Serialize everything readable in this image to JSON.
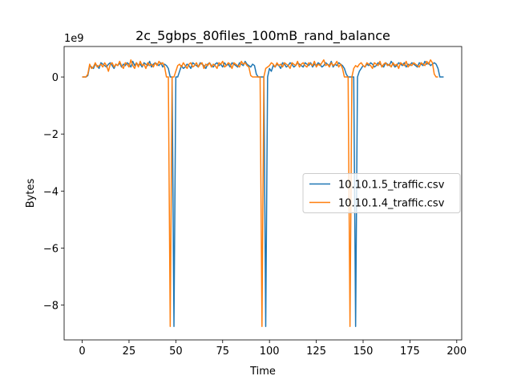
{
  "chart_data": {
    "type": "line",
    "title": "2c_5gbps_80files_100mB_rand_balance",
    "xlabel": "Time",
    "ylabel": "Bytes",
    "y_offset_label": "1e9",
    "x": [
      0,
      1,
      2,
      3,
      4,
      5,
      6,
      7,
      8,
      9,
      10,
      11,
      12,
      13,
      14,
      15,
      16,
      17,
      18,
      19,
      20,
      21,
      22,
      23,
      24,
      25,
      26,
      27,
      28,
      29,
      30,
      31,
      32,
      33,
      34,
      35,
      36,
      37,
      38,
      39,
      40,
      41,
      42,
      43,
      44,
      45,
      46,
      47,
      48,
      49,
      50,
      51,
      52,
      53,
      54,
      55,
      56,
      57,
      58,
      59,
      60,
      61,
      62,
      63,
      64,
      65,
      66,
      67,
      68,
      69,
      70,
      71,
      72,
      73,
      74,
      75,
      76,
      77,
      78,
      79,
      80,
      81,
      82,
      83,
      84,
      85,
      86,
      87,
      88,
      89,
      90,
      91,
      92,
      93,
      94,
      95,
      96,
      97,
      98,
      99,
      100,
      101,
      102,
      103,
      104,
      105,
      106,
      107,
      108,
      109,
      110,
      111,
      112,
      113,
      114,
      115,
      116,
      117,
      118,
      119,
      120,
      121,
      122,
      123,
      124,
      125,
      126,
      127,
      128,
      129,
      130,
      131,
      132,
      133,
      134,
      135,
      136,
      137,
      138,
      139,
      140,
      141,
      142,
      143,
      144,
      145,
      146,
      147,
      148,
      149,
      150,
      151,
      152,
      153,
      154,
      155,
      156,
      157,
      158,
      159,
      160,
      161,
      162,
      163,
      164,
      165,
      166,
      167,
      168,
      169,
      170,
      171,
      172,
      173,
      174,
      175,
      176,
      177,
      178,
      179,
      180,
      181,
      182,
      183,
      184,
      185,
      186,
      187,
      188,
      189,
      190,
      191,
      192,
      193
    ],
    "series": [
      {
        "name": "10.10.1.5_traffic.csv",
        "color": "#1f77b4",
        "values": [
          0,
          0,
          0,
          0.05,
          0.4,
          0.35,
          0.3,
          0.45,
          0.4,
          0.3,
          0.5,
          0.45,
          0.4,
          0.35,
          0.45,
          0.5,
          0.4,
          0.3,
          0.45,
          0.4,
          0.5,
          0.35,
          0.45,
          0.4,
          0.5,
          0.45,
          0.35,
          0.55,
          0.4,
          0.5,
          0.4,
          0.45,
          0.35,
          0.5,
          0.45,
          0.4,
          0.55,
          0.35,
          0.45,
          0.5,
          0.45,
          0.4,
          0.5,
          0.35,
          0.45,
          0.4,
          0.3,
          0,
          0,
          -8.75,
          0,
          0,
          0.2,
          0.4,
          0.3,
          0.35,
          0.45,
          0.4,
          0.3,
          0.5,
          0.45,
          0.4,
          0.35,
          0.5,
          0.45,
          0.4,
          0.3,
          0.45,
          0.5,
          0.4,
          0.35,
          0.45,
          0.5,
          0.4,
          0.45,
          0.35,
          0.5,
          0.4,
          0.45,
          0.35,
          0.5,
          0.45,
          0.4,
          0.35,
          0.5,
          0.45,
          0.4,
          0.55,
          0.45,
          0.4,
          0.35,
          0.45,
          0.4,
          0.1,
          0,
          0,
          0,
          0,
          -8.75,
          0,
          0.3,
          0.2,
          0.4,
          0.35,
          0.45,
          0.4,
          0.3,
          0.5,
          0.45,
          0.35,
          0.4,
          0.5,
          0.45,
          0.35,
          0.4,
          0.5,
          0.45,
          0.4,
          0.35,
          0.5,
          0.45,
          0.4,
          0.5,
          0.35,
          0.45,
          0.4,
          0.5,
          0.45,
          0.35,
          0.4,
          0.5,
          0.45,
          0.4,
          0.55,
          0.35,
          0.45,
          0.4,
          0.5,
          0.45,
          0.4,
          0.3,
          0.1,
          0,
          0,
          0,
          0,
          -8.75,
          0,
          0.2,
          0.3,
          0.4,
          0.35,
          0.45,
          0.4,
          0.5,
          0.45,
          0.35,
          0.4,
          0.5,
          0.45,
          0.4,
          0.35,
          0.5,
          0.45,
          0.4,
          0.55,
          0.45,
          0.35,
          0.4,
          0.5,
          0.45,
          0.4,
          0.5,
          0.35,
          0.45,
          0.4,
          0.5,
          0.45,
          0.4,
          0.35,
          0.5,
          0.45,
          0.4,
          0.55,
          0.45,
          0.5,
          0.4,
          0.45,
          0.5,
          0.45,
          0.3,
          0,
          0,
          0
        ]
      },
      {
        "name": "10.10.1.4_traffic.csv",
        "color": "#ff7f0e",
        "values": [
          0,
          0,
          0,
          0.1,
          0.45,
          0.3,
          0.35,
          0.5,
          0.35,
          0.4,
          0.45,
          0.35,
          0.5,
          0.4,
          0.2,
          0.45,
          0.5,
          0.35,
          0.45,
          0.4,
          0.55,
          0.4,
          0.3,
          0.5,
          0.45,
          0.35,
          0.6,
          0.4,
          0.3,
          0.5,
          0.35,
          0.55,
          0.4,
          0.45,
          0.3,
          0.5,
          0.4,
          0.45,
          0.35,
          0.5,
          0.4,
          0.55,
          0.45,
          0.5,
          0.35,
          0,
          0,
          -8.75,
          0,
          0,
          0.2,
          0.4,
          0.45,
          0.35,
          0.5,
          0.4,
          0.3,
          0.45,
          0.5,
          0.35,
          0.4,
          0.5,
          0.35,
          0.45,
          0.5,
          0.3,
          0.45,
          0.4,
          0.5,
          0.35,
          0.45,
          0.4,
          0.3,
          0.5,
          0.45,
          0.55,
          0.35,
          0.4,
          0.5,
          0.45,
          0.3,
          0.5,
          0.45,
          0.4,
          0.35,
          0.55,
          0.45,
          0.5,
          0.4,
          0.35,
          0.05,
          0,
          0,
          0,
          0,
          0,
          -8.75,
          0,
          0.3,
          0.35,
          0.4,
          0.5,
          0.45,
          0.35,
          0.5,
          0.4,
          0.45,
          0.35,
          0.5,
          0.45,
          0.4,
          0.3,
          0.5,
          0.45,
          0.4,
          0.55,
          0.35,
          0.45,
          0.5,
          0.4,
          0.35,
          0.5,
          0.45,
          0.4,
          0.55,
          0.35,
          0.45,
          0.4,
          0.5,
          0.6,
          0.4,
          0.45,
          0.35,
          0.5,
          0.4,
          0.45,
          0.55,
          0.35,
          0.45,
          0.3,
          0,
          0,
          0,
          -8.75,
          0,
          0.3,
          0.4,
          0.35,
          0.45,
          0.5,
          0.4,
          0.35,
          0.5,
          0.45,
          0.4,
          0.3,
          0.5,
          0.45,
          0.4,
          0.55,
          0.35,
          0.45,
          0.5,
          0.4,
          0.45,
          0.35,
          0.5,
          0.4,
          0.45,
          0.3,
          0.5,
          0.45,
          0.4,
          0.55,
          0.35,
          0.45,
          0.4,
          0.5,
          0.45,
          0.4,
          0.35,
          0.5,
          0.45,
          0.4,
          0.55,
          0.45,
          0.6,
          0.5,
          0.1,
          0,
          0,
          null,
          null,
          null
        ]
      }
    ],
    "xlim": [
      -9.65,
      202.65
    ],
    "xticks": [
      0,
      25,
      50,
      75,
      100,
      125,
      150,
      175,
      200
    ],
    "ylim": [
      -9.22,
      1.07
    ],
    "yticks": [
      {
        "value": -8,
        "label": "−8"
      },
      {
        "value": -6,
        "label": "−6"
      },
      {
        "value": -4,
        "label": "−4"
      },
      {
        "value": -2,
        "label": "−2"
      },
      0
    ],
    "legend": "center right"
  }
}
